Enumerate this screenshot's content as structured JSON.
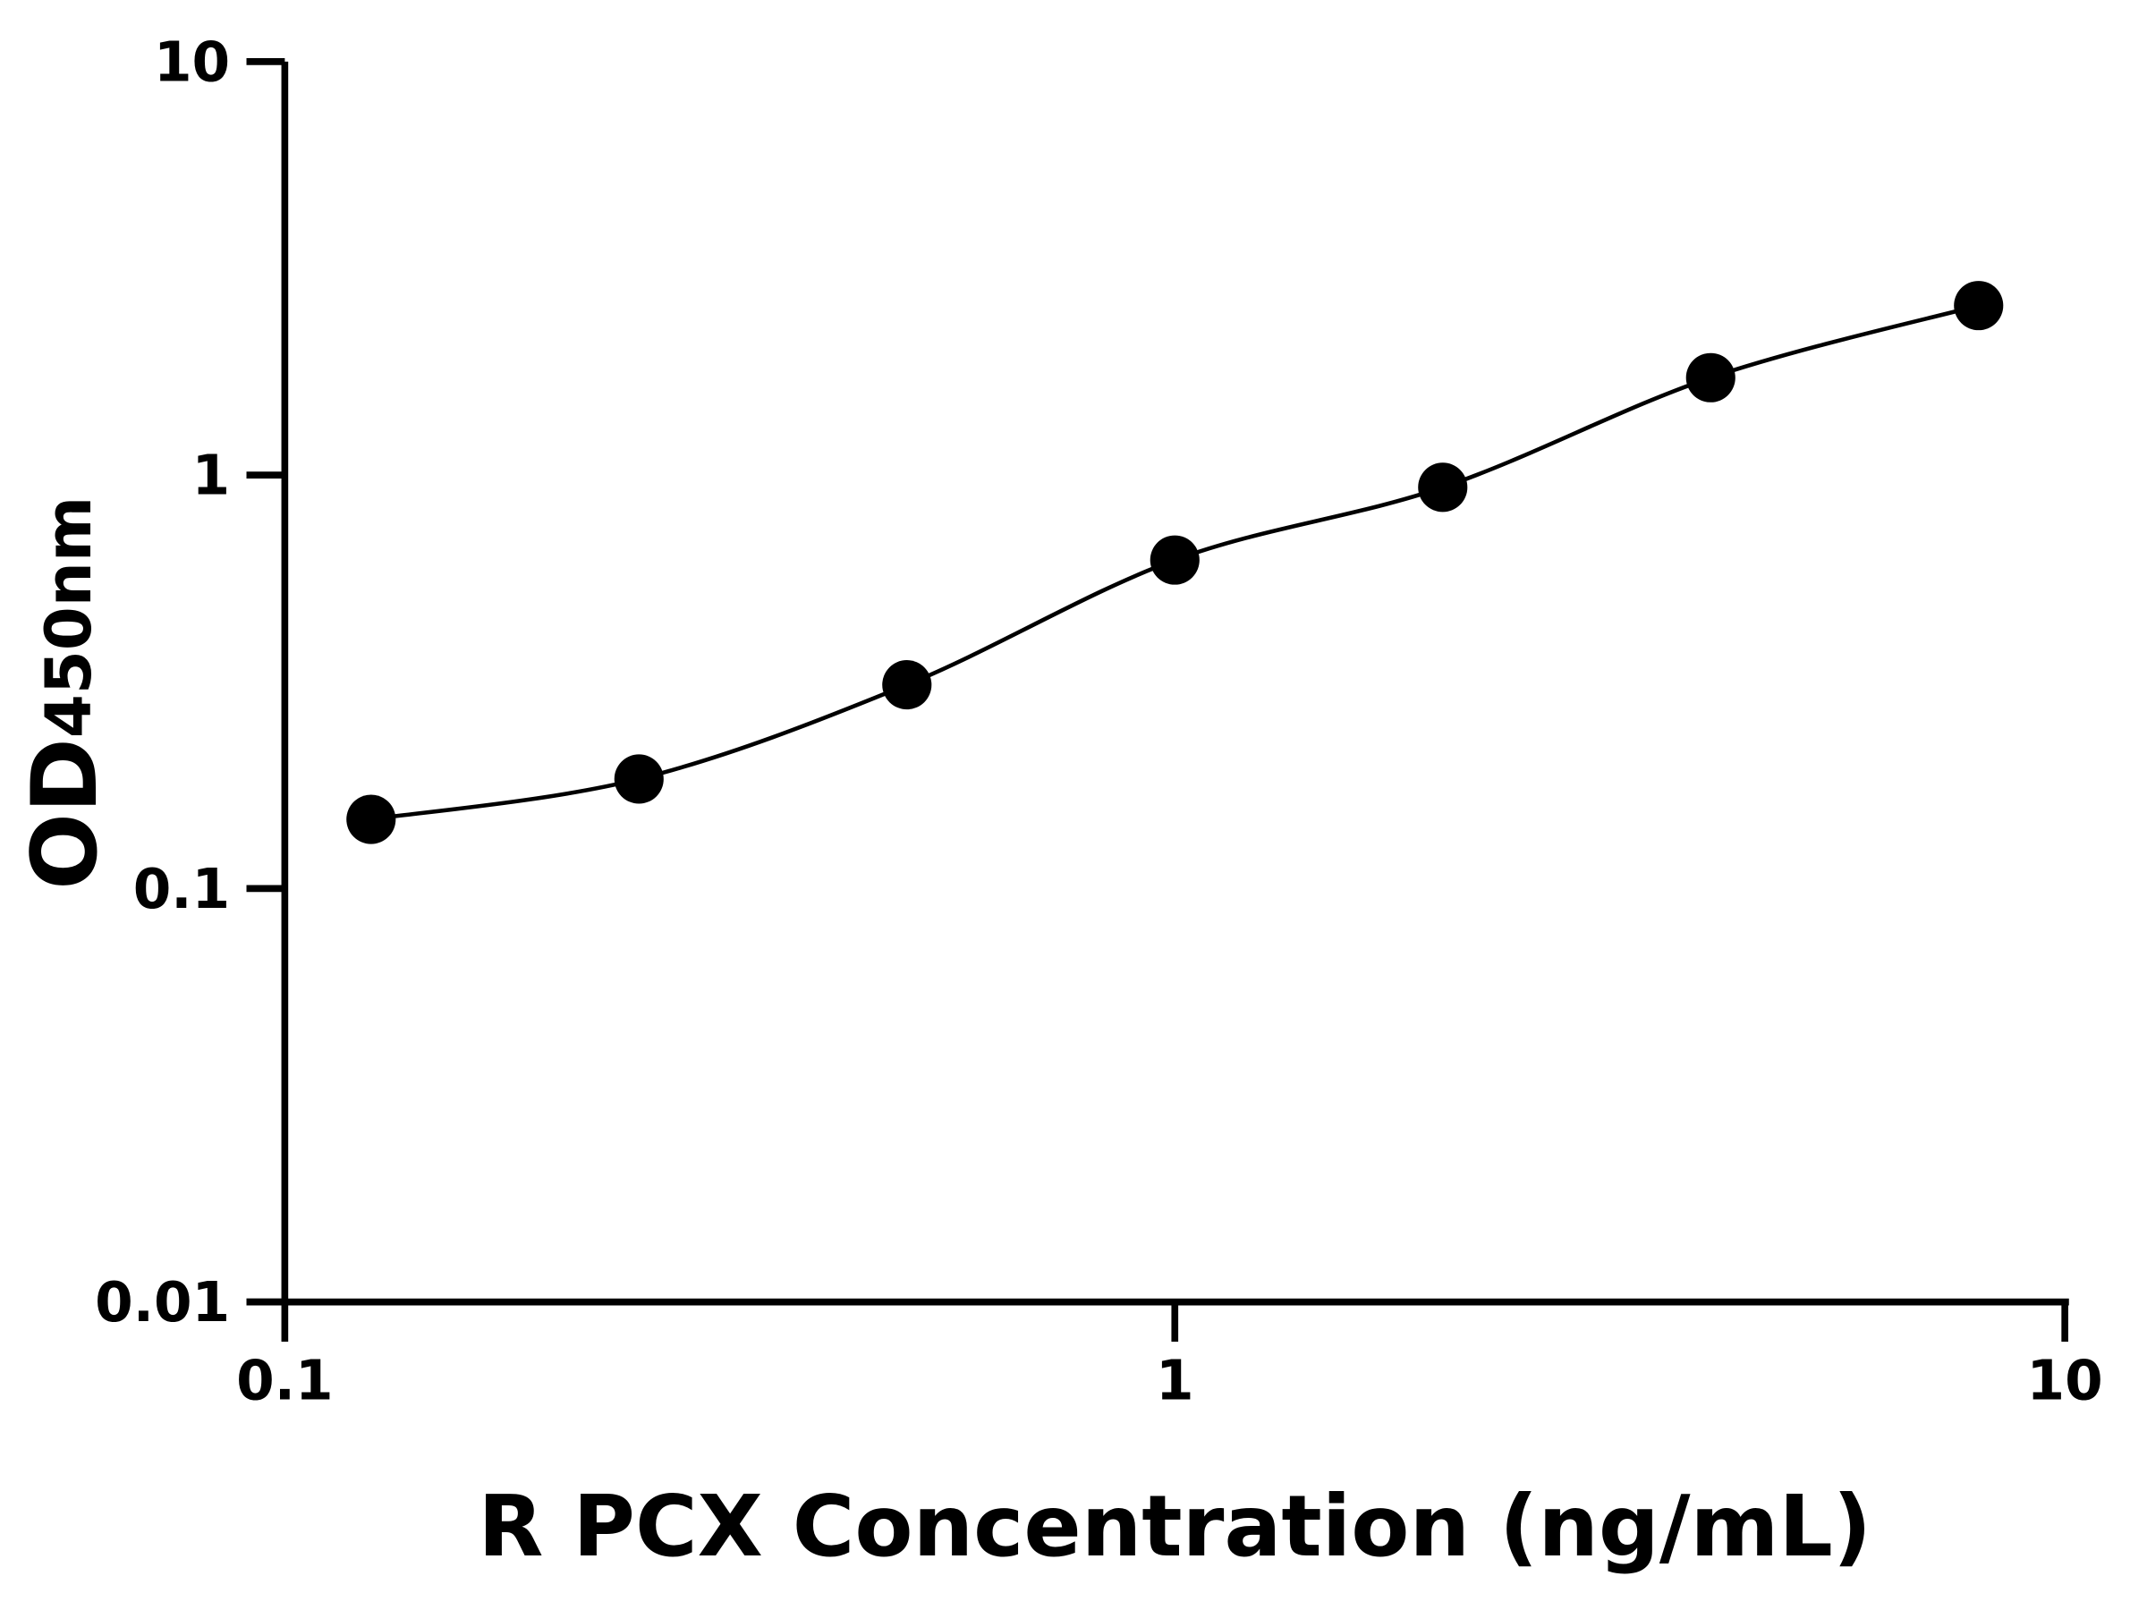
{
  "chart_data": {
    "type": "scatter",
    "title": "",
    "xlabel": "R PCX Concentration (ng/mL)",
    "ylabel_main": "OD",
    "ylabel_sub": "450nm",
    "xscale": "log",
    "yscale": "log",
    "xlim": [
      0.1,
      10
    ],
    "ylim": [
      0.01,
      10
    ],
    "xticks": [
      {
        "v": 0.1,
        "label": "0.1"
      },
      {
        "v": 1,
        "label": "1"
      },
      {
        "v": 10,
        "label": "10"
      }
    ],
    "yticks": [
      {
        "v": 0.01,
        "label": "0.01"
      },
      {
        "v": 0.1,
        "label": "0.1"
      },
      {
        "v": 1,
        "label": "1"
      },
      {
        "v": 10,
        "label": "10"
      }
    ],
    "grid": false,
    "fit_curve": true,
    "colors": {
      "points": "#000000",
      "line": "#000000"
    },
    "x": [
      0.125,
      0.25,
      0.5,
      1,
      2,
      4,
      8
    ],
    "y": [
      0.147,
      0.184,
      0.311,
      0.623,
      0.934,
      1.72,
      2.57
    ]
  }
}
